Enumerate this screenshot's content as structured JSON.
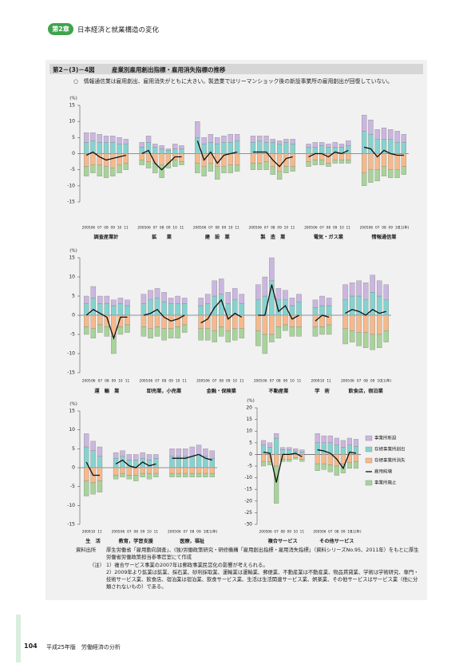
{
  "header": {
    "chapter": "第2章",
    "title": "日本経済と就業構造の変化"
  },
  "figure": {
    "number": "第2－(3)－4図",
    "title": "産業別雇用創出指標・雇用消失指標の推移",
    "summary": "○　情報通信業は雇用創出、雇用消失がともに大きい。製造業ではリーマンショック後の新設事業所の雇用創出が回復していない。"
  },
  "chart_data": [
    {
      "type": "bar",
      "stacked": true,
      "unit": "(%)",
      "ylim": [
        -15,
        15
      ],
      "yticks": [
        -15,
        -10,
        -5,
        0,
        5,
        10,
        15
      ],
      "groups": [
        {
          "label": "調査産業計",
          "categories": [
            "2005",
            "06",
            "07",
            "08",
            "09",
            "10",
            "11"
          ]
        },
        {
          "label": "鉱　　業",
          "categories": [
            "2005",
            "06",
            "07",
            "08",
            "09",
            "10",
            "11"
          ]
        },
        {
          "label": "建　設　業",
          "categories": [
            "2005",
            "06",
            "07",
            "08",
            "09",
            "10",
            "11"
          ]
        },
        {
          "label": "製　造　業",
          "categories": [
            "2005",
            "06",
            "07",
            "08",
            "09",
            "10",
            "11"
          ]
        },
        {
          "label": "電気・ガス業",
          "categories": [
            "2005",
            "06",
            "07",
            "08",
            "09",
            "10",
            "11"
          ]
        },
        {
          "label": "情報通信業",
          "categories": [
            "2005",
            "06",
            "07",
            "08",
            "09",
            "10",
            "11(年)"
          ]
        }
      ],
      "series": [
        {
          "color": "#cbb6e0",
          "values": [
            3,
            2.5,
            2.5,
            2,
            2,
            2,
            1.5,
            1.5,
            2,
            1,
            1,
            0.5,
            1.5,
            1,
            5,
            2,
            2.5,
            2,
            2,
            2.5,
            2,
            2,
            1.5,
            2,
            1,
            1,
            1,
            1.5,
            1,
            1.5,
            1,
            1,
            1.5,
            1,
            1.5,
            5,
            4.5,
            3,
            3.5,
            3,
            3.5,
            2.5
          ]
        },
        {
          "color": "#86d2cf",
          "values": [
            3.5,
            4,
            3.5,
            3.5,
            3.5,
            3,
            3,
            2,
            3.5,
            2,
            1.5,
            1,
            1.5,
            1.5,
            5,
            3,
            3.5,
            3,
            3.5,
            3.5,
            4,
            3.5,
            4,
            3.5,
            3.5,
            3,
            3.5,
            3,
            2,
            2,
            2.5,
            2,
            2,
            2,
            2.5,
            7,
            6,
            4.5,
            4.5,
            4.5,
            3.5,
            3.5
          ]
        },
        {
          "color": "#f5b98b",
          "values": [
            -4,
            -3.5,
            -3.5,
            -4,
            -4.5,
            -3.5,
            -3,
            -2,
            -2.5,
            -3,
            -3.5,
            -3,
            -2,
            -2.5,
            -3,
            -4,
            -3,
            -4,
            -4,
            -3.5,
            -3.5,
            -3,
            -3,
            -2.5,
            -4,
            -5.5,
            -4,
            -4,
            -2.5,
            -2,
            -2,
            -3,
            -2,
            -2,
            -2,
            -6,
            -5,
            -5,
            -4,
            -5,
            -5,
            -4
          ]
        },
        {
          "type": "line",
          "color": "#111111",
          "values": [
            -0.5,
            0.5,
            -1,
            -2,
            -1.5,
            -1,
            -0.5,
            0,
            1,
            -3,
            -5,
            -3,
            -1,
            -1,
            4,
            -2,
            0.5,
            -3,
            -0.5,
            0,
            0.5,
            0.5,
            0.5,
            0.5,
            -2,
            -4,
            -1.5,
            -1,
            -1,
            0,
            0,
            -1,
            0.5,
            0,
            1,
            2,
            1.5,
            -1,
            1,
            0,
            -0.5,
            -0.5
          ]
        },
        {
          "color": "#a8d39a",
          "values": [
            -3,
            -2.5,
            -3.5,
            -3.5,
            -2.5,
            -2.5,
            -2,
            -1.5,
            -2,
            -3,
            -4,
            -1.5,
            -2,
            -1,
            -3,
            -3,
            -2.5,
            -4,
            -2,
            -2.5,
            -2,
            -2,
            -2,
            -2.5,
            -2.5,
            -2.5,
            -2,
            -1.5,
            -1.5,
            -1.5,
            -1.5,
            -1,
            -1,
            -1,
            -1,
            -4,
            -4,
            -3.5,
            -3,
            -2.5,
            -2.5,
            -2.5
          ]
        }
      ]
    },
    {
      "type": "bar",
      "stacked": true,
      "unit": "(%)",
      "ylim": [
        -15,
        15
      ],
      "yticks": [
        -15,
        -10,
        -5,
        0,
        5,
        10,
        15
      ],
      "groups": [
        {
          "label": "運　輸　業",
          "categories": [
            "2005",
            "06",
            "07",
            "08",
            "09",
            "10",
            "11"
          ]
        },
        {
          "label": "卸売業，小売業",
          "categories": [
            "2005",
            "06",
            "07",
            "08",
            "09",
            "10",
            "11"
          ]
        },
        {
          "label": "金融・保険業",
          "categories": [
            "2005",
            "06",
            "07",
            "08",
            "09",
            "10",
            "11"
          ]
        },
        {
          "label": "不動産業",
          "categories": [
            "2005",
            "06",
            "07",
            "08",
            "09",
            "10",
            "11"
          ]
        },
        {
          "label": "学　術",
          "categories": [
            "2009",
            "10",
            "11"
          ]
        },
        {
          "label": "飲食店，宿泊業",
          "categories": [
            "2005",
            "06",
            "07",
            "08",
            "09",
            "10",
            "11(年)"
          ]
        }
      ],
      "series": [
        {
          "color": "#cbb6e0",
          "values": [
            2,
            3,
            2,
            2,
            1.5,
            1.5,
            1.5,
            2.5,
            2.5,
            2.5,
            2.5,
            1.5,
            2,
            1.5,
            2,
            2.5,
            4,
            4,
            3,
            3,
            2.5,
            4,
            5,
            6,
            3,
            2.5,
            2,
            2,
            2,
            2.5,
            2,
            4,
            3.5,
            4,
            4.5,
            4.5,
            4,
            4
          ]
        },
        {
          "color": "#86d2cf",
          "values": [
            3,
            4.5,
            3,
            3,
            2.5,
            3,
            2.5,
            3,
            4,
            4.5,
            3.5,
            3,
            3,
            3,
            2.5,
            3,
            5,
            5.5,
            3,
            4,
            3,
            4,
            5,
            9,
            4,
            4,
            2.5,
            3.5,
            2,
            2.5,
            2.5,
            4,
            5,
            5,
            4,
            6,
            5,
            4
          ]
        },
        {
          "color": "#f5b98b",
          "values": [
            -3,
            -3.5,
            -2.5,
            -3,
            -5.5,
            -3,
            -2.5,
            -3,
            -3.5,
            -3,
            -3.5,
            -3.5,
            -3,
            -2.5,
            -3.5,
            -3.5,
            -4,
            -3,
            -4,
            -3.5,
            -3.5,
            -4,
            -5,
            -5,
            -3,
            -2.5,
            -3,
            -3,
            -3,
            -3,
            -2.5,
            -3.5,
            -4,
            -4.5,
            -4.5,
            -5,
            -5,
            -4
          ]
        },
        {
          "type": "line",
          "color": "#111111",
          "values": [
            0,
            1.5,
            0.5,
            -0.5,
            -6,
            -0.5,
            -0.5,
            0,
            0.5,
            1.5,
            -0.5,
            -1.5,
            -1,
            0,
            -2,
            -1,
            2,
            4,
            -1,
            0.5,
            -0.5,
            0,
            0,
            8,
            1,
            2.5,
            -1,
            0,
            -1.5,
            0,
            -0.5,
            0.5,
            1.5,
            1,
            0,
            1.5,
            0.5,
            1
          ]
        },
        {
          "color": "#a8d39a",
          "values": [
            -2,
            -2.5,
            -2,
            -2.5,
            -4.5,
            -2,
            -2,
            -2.5,
            -2.5,
            -2.5,
            -3,
            -2.5,
            -3,
            -2,
            -3,
            -3,
            -3,
            -2.5,
            -3,
            -3,
            -2.5,
            -4,
            -5,
            -2,
            -3,
            -1.5,
            -2.5,
            -2.5,
            -2.5,
            -2,
            -2.5,
            -4,
            -3,
            -3.5,
            -4,
            -4,
            -3.5,
            -3
          ]
        }
      ]
    },
    {
      "type": "bar",
      "stacked": true,
      "unit": "(%)",
      "ylim": [
        -15,
        15
      ],
      "yticks": [
        -15,
        -10,
        -5,
        0,
        5,
        10,
        15
      ],
      "groups": [
        {
          "label": "生　活",
          "categories": [
            "2009",
            "10",
            "11"
          ]
        },
        {
          "label": "教育，学習支援",
          "categories": [
            "2005",
            "06",
            "07",
            "08",
            "09",
            "10",
            "11"
          ]
        },
        {
          "label": "医療，福祉",
          "categories": [
            "2005",
            "06",
            "07",
            "08",
            "09",
            "10",
            "11(年)"
          ]
        }
      ],
      "series": [
        {
          "color": "#cbb6e0",
          "values": [
            3.5,
            2.5,
            2.5,
            1.5,
            1.5,
            1.5,
            1.5,
            1.5,
            1.5,
            1,
            2,
            2,
            2,
            2.5,
            2.5,
            2,
            2
          ]
        },
        {
          "color": "#86d2cf",
          "values": [
            5.5,
            4.5,
            3,
            2.5,
            3,
            2,
            2,
            2.5,
            2,
            2.5,
            3,
            3,
            3,
            3,
            3.5,
            3,
            2.5
          ]
        },
        {
          "color": "#f5b98b",
          "values": [
            -3.5,
            -4,
            -3.5,
            -2,
            -1.5,
            -2,
            -2,
            -1.5,
            -1.5,
            -1.5,
            -1.5,
            -1.5,
            -1.5,
            -1.5,
            -1.5,
            -1.5,
            -1.5
          ]
        },
        {
          "type": "line",
          "color": "#111111",
          "values": [
            1.5,
            -2,
            -2,
            1,
            2,
            0.5,
            0,
            1.5,
            0.5,
            1,
            2.5,
            2.5,
            2.5,
            3,
            3.5,
            2.5,
            2
          ]
        },
        {
          "color": "#a8d39a",
          "values": [
            -4,
            -3,
            -3,
            -1,
            -1,
            -1,
            -1.5,
            -1,
            -1.5,
            -1,
            -1,
            -1,
            -1,
            -1,
            -1,
            -1,
            -1
          ]
        }
      ]
    },
    {
      "type": "bar",
      "stacked": true,
      "unit": "(%)",
      "ylim": [
        -30,
        20
      ],
      "yticks": [
        -30,
        -25,
        -20,
        -15,
        -10,
        -5,
        0,
        5,
        10,
        15,
        20
      ],
      "legend": "right",
      "groups": [
        {
          "label": "複合サービス",
          "categories": [
            "2005",
            "06",
            "07",
            "08",
            "09",
            "10",
            "11"
          ]
        },
        {
          "label": "その他サービス",
          "categories": [
            "2005",
            "06",
            "07",
            "08",
            "09",
            "10",
            "11(年)"
          ]
        }
      ],
      "series": [
        {
          "name": "事業所新設",
          "color": "#cbb6e0",
          "values": [
            2,
            2,
            2,
            1,
            1,
            1,
            1,
            4,
            3,
            3,
            3,
            3,
            3,
            3
          ]
        },
        {
          "name": "存続事業所創出",
          "color": "#86d2cf",
          "values": [
            4,
            3,
            7,
            2,
            2,
            1.5,
            1,
            5,
            5,
            5,
            4,
            3,
            4,
            3.5
          ]
        },
        {
          "name": "存続事業所消失",
          "color": "#f5b98b",
          "values": [
            -3,
            -3,
            -5,
            -2,
            -2,
            -1.5,
            -2,
            -4,
            -4,
            -4.5,
            -5,
            -4,
            -3.5,
            -3
          ]
        },
        {
          "name": "雇用純増",
          "type": "line",
          "color": "#111111",
          "values": [
            1,
            0.5,
            -12,
            0,
            0,
            0.5,
            -1,
            2,
            1.5,
            0.5,
            -2,
            -6,
            1,
            0.5
          ]
        },
        {
          "name": "事業所廃止",
          "color": "#a8d39a",
          "values": [
            -2,
            -1.5,
            -16,
            -1,
            -1,
            -0.5,
            -1,
            -3,
            -2.5,
            -3,
            -4,
            -4,
            -2.5,
            -3
          ]
        }
      ]
    }
  ],
  "source": {
    "label": "資料出所",
    "text": "厚生労働省「雇用動向調査」、(独)労働政策研究・研修機構「雇用創出指標・雇用消失指標」（資料シリーズNo.95、2011年）をもとに厚生労働省労働政策担当参事官室にて作成"
  },
  "notes": {
    "label": "（注）",
    "items": [
      "1）複合サービス事業の2007年は郵政事業民営化の影響が考えられる。",
      "2）2009年より鉱業は鉱業、採石業、砂利採取業、運輸業は運輸業、郵便業、不動産業は不動産業、物品賃貸業、学術は学術研究、専門・技術サービス業、飲食店、宿泊業は宿泊業、飲食サービス業、生活は生活関連サービス業、娯楽業、その他サービスはサービス業（他に分類されないもの）である。"
    ]
  },
  "footer": {
    "page": "104",
    "title": "平成25年版　労働経済の分析"
  }
}
